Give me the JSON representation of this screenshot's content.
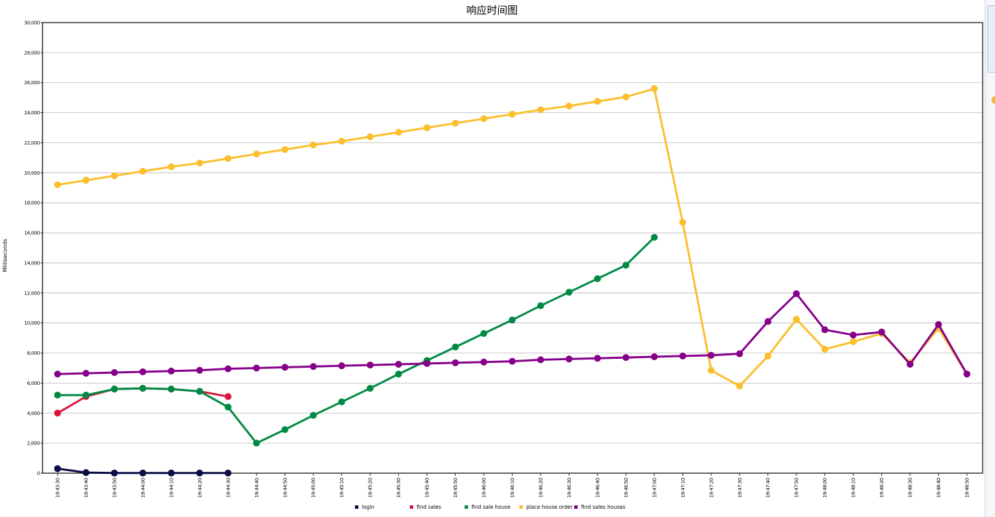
{
  "chart_data": {
    "type": "line",
    "title": "响应时间图",
    "xlabel": "",
    "ylabel": "Milliseconds",
    "ylim": [
      0,
      30000
    ],
    "yticks": [
      0,
      2000,
      4000,
      6000,
      8000,
      10000,
      12000,
      14000,
      16000,
      18000,
      20000,
      22000,
      24000,
      26000,
      28000,
      30000
    ],
    "ytick_labels": [
      "0",
      "2,000",
      "4,000",
      "6,000",
      "8,000",
      "10,000",
      "12,000",
      "14,000",
      "16,000",
      "18,000",
      "20,000",
      "22,000",
      "24,000",
      "26,000",
      "28,000",
      "30,000"
    ],
    "grid": true,
    "legend_position": "bottom",
    "categories": [
      "19:43:30",
      "19:43:40",
      "19:43:50",
      "19:44:00",
      "19:44:10",
      "19:44:20",
      "19:44:30",
      "19:44:40",
      "19:44:50",
      "19:45:00",
      "19:45:10",
      "19:45:20",
      "19:45:30",
      "19:45:40",
      "19:45:50",
      "19:46:00",
      "19:46:10",
      "19:46:20",
      "19:46:30",
      "19:46:40",
      "19:46:50",
      "19:47:00",
      "19:47:10",
      "19:47:20",
      "19:47:30",
      "19:47:40",
      "19:47:50",
      "19:48:00",
      "19:48:10",
      "19:48:20",
      "19:48:30",
      "19:48:40",
      "19:48:50"
    ],
    "series": [
      {
        "name": "login",
        "color": "#0d0d45",
        "values": [
          300,
          40,
          10,
          10,
          10,
          10,
          10,
          null,
          null,
          null,
          null,
          null,
          null,
          null,
          null,
          null,
          null,
          null,
          null,
          null,
          null,
          null,
          null,
          null,
          null,
          null,
          null,
          null,
          null,
          null,
          null,
          null,
          null
        ]
      },
      {
        "name": "find sales",
        "color": "#d9173e",
        "values": [
          4000,
          5100,
          5600,
          5650,
          5600,
          5450,
          5100,
          null,
          null,
          null,
          null,
          null,
          null,
          null,
          null,
          null,
          null,
          null,
          null,
          null,
          null,
          null,
          null,
          null,
          null,
          null,
          null,
          null,
          null,
          null,
          null,
          null,
          null
        ]
      },
      {
        "name": "find sale house",
        "color": "#008a44",
        "values": [
          5200,
          5200,
          5600,
          5650,
          5600,
          5450,
          4400,
          2000,
          2900,
          3850,
          4750,
          5650,
          6600,
          7500,
          8400,
          9300,
          10200,
          11150,
          12050,
          12950,
          13850,
          15700,
          null,
          null,
          null,
          null,
          null,
          null,
          null,
          null,
          null,
          null,
          null
        ]
      },
      {
        "name": "place house order",
        "color": "#fbbf2d",
        "values": [
          19200,
          19500,
          19800,
          20100,
          20400,
          20650,
          20950,
          21250,
          21550,
          21850,
          22100,
          22400,
          22700,
          23000,
          23300,
          23600,
          23900,
          24200,
          24450,
          24750,
          25050,
          25600,
          16700,
          6850,
          5800,
          7800,
          10250,
          8250,
          8750,
          9300,
          7350,
          9650,
          6600
        ]
      },
      {
        "name": "find sales houses",
        "color": "#86008a",
        "values": [
          6600,
          6650,
          6700,
          6750,
          6800,
          6850,
          6950,
          7000,
          7050,
          7100,
          7150,
          7200,
          7250,
          7300,
          7350,
          7400,
          7450,
          7550,
          7600,
          7650,
          7700,
          7750,
          7800,
          7850,
          7950,
          10100,
          11950,
          9550,
          9200,
          9400,
          7250,
          9900,
          6600
        ]
      }
    ]
  }
}
